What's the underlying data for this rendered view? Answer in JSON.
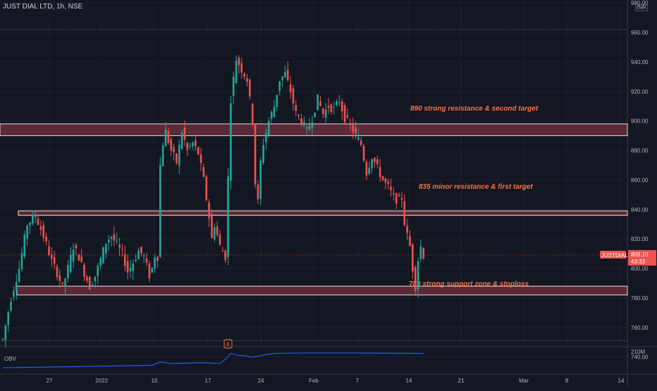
{
  "header": {
    "symbol_line": "JUST DIAL LTD, 1h, NSE",
    "currency": "INR"
  },
  "colors": {
    "background": "#131722",
    "grid": "#1e222d",
    "up": "#26a69a",
    "down": "#ef5350",
    "zone_fill": "#5a2a36",
    "zone_border": "#e8e0e0",
    "annotation": "#ff7043",
    "obv_line": "#2962ff"
  },
  "chart_data": {
    "type": "candlestick",
    "title": "JUST DIAL LTD, 1h, NSE",
    "xlabel": "",
    "ylabel": "",
    "ylim": [
      747,
      982
    ],
    "y_ticks": [
      "980.00",
      "960.00",
      "940.00",
      "920.00",
      "900.00",
      "880.00",
      "860.00",
      "840.00",
      "820.00",
      "800.00",
      "780.00",
      "760.00",
      "740.00"
    ],
    "x_ticks": [
      "27",
      "2022",
      "10",
      "17",
      "24",
      "Feb",
      "7",
      "14",
      "21",
      "Mar",
      "8",
      "14"
    ],
    "price_path": [
      [
        0,
        752
      ],
      [
        3,
        780
      ],
      [
        6,
        800
      ],
      [
        9,
        830
      ],
      [
        12,
        836
      ],
      [
        15,
        822
      ],
      [
        18,
        805
      ],
      [
        20,
        797
      ],
      [
        22,
        787
      ],
      [
        24,
        800
      ],
      [
        26,
        815
      ],
      [
        28,
        808
      ],
      [
        30,
        797
      ],
      [
        32,
        788
      ],
      [
        34,
        795
      ],
      [
        36,
        806
      ],
      [
        38,
        818
      ],
      [
        40,
        822
      ],
      [
        42,
        816
      ],
      [
        44,
        810
      ],
      [
        46,
        798
      ],
      [
        48,
        804
      ],
      [
        50,
        812
      ],
      [
        52,
        808
      ],
      [
        54,
        795
      ],
      [
        55,
        800
      ],
      [
        56,
        809
      ],
      [
        57,
        808
      ],
      [
        58,
        870
      ],
      [
        59,
        885
      ],
      [
        60,
        893
      ],
      [
        62,
        880
      ],
      [
        64,
        872
      ],
      [
        66,
        893
      ],
      [
        68,
        880
      ],
      [
        70,
        885
      ],
      [
        72,
        878
      ],
      [
        74,
        860
      ],
      [
        76,
        835
      ],
      [
        77,
        820
      ],
      [
        78,
        830
      ],
      [
        80,
        815
      ],
      [
        82,
        808
      ],
      [
        84,
        915
      ],
      [
        86,
        942
      ],
      [
        88,
        935
      ],
      [
        90,
        928
      ],
      [
        92,
        900
      ],
      [
        93,
        858
      ],
      [
        94,
        845
      ],
      [
        95,
        872
      ],
      [
        96,
        885
      ],
      [
        98,
        900
      ],
      [
        100,
        910
      ],
      [
        102,
        928
      ],
      [
        104,
        932
      ],
      [
        106,
        920
      ],
      [
        108,
        905
      ],
      [
        110,
        900
      ],
      [
        112,
        893
      ],
      [
        114,
        902
      ],
      [
        116,
        915
      ],
      [
        118,
        905
      ],
      [
        120,
        910
      ],
      [
        122,
        908
      ],
      [
        124,
        914
      ],
      [
        126,
        902
      ],
      [
        128,
        897
      ],
      [
        130,
        890
      ],
      [
        132,
        884
      ],
      [
        134,
        865
      ],
      [
        136,
        876
      ],
      [
        138,
        868
      ],
      [
        140,
        860
      ],
      [
        142,
        855
      ],
      [
        144,
        848
      ],
      [
        146,
        846
      ],
      [
        147,
        848
      ],
      [
        148,
        831
      ],
      [
        149,
        822
      ],
      [
        150,
        815
      ],
      [
        151,
        800
      ],
      [
        152,
        788
      ],
      [
        153,
        806
      ],
      [
        154,
        815
      ],
      [
        155,
        809
      ]
    ],
    "candle_count": 156,
    "current_price": 809.1,
    "current_price_label": "809.10",
    "countdown_label": "43:33",
    "symbol_tag": "JUSTDIAL",
    "zones": [
      {
        "lo": 890,
        "hi": 898,
        "label": "890 strong resistance & second target"
      },
      {
        "lo": 836,
        "hi": 839,
        "label": "835 minor resistance & first target"
      },
      {
        "lo": 782,
        "hi": 788,
        "label": "780 strong support zone & stoploss"
      }
    ],
    "dotted_levels": [
      962,
      751
    ],
    "earnings_marker": "E",
    "obv": {
      "label": "OBV",
      "value_label": "210M",
      "path": [
        [
          0,
          10
        ],
        [
          20,
          12
        ],
        [
          40,
          14
        ],
        [
          55,
          16
        ],
        [
          58,
          24
        ],
        [
          62,
          20
        ],
        [
          74,
          22
        ],
        [
          80,
          20
        ],
        [
          82,
          30
        ],
        [
          84,
          44
        ],
        [
          86,
          40
        ],
        [
          90,
          38
        ],
        [
          92,
          35
        ],
        [
          96,
          40
        ],
        [
          100,
          44
        ],
        [
          110,
          45
        ],
        [
          130,
          45
        ],
        [
          155,
          44
        ]
      ]
    },
    "grid": true,
    "legend": "none"
  }
}
